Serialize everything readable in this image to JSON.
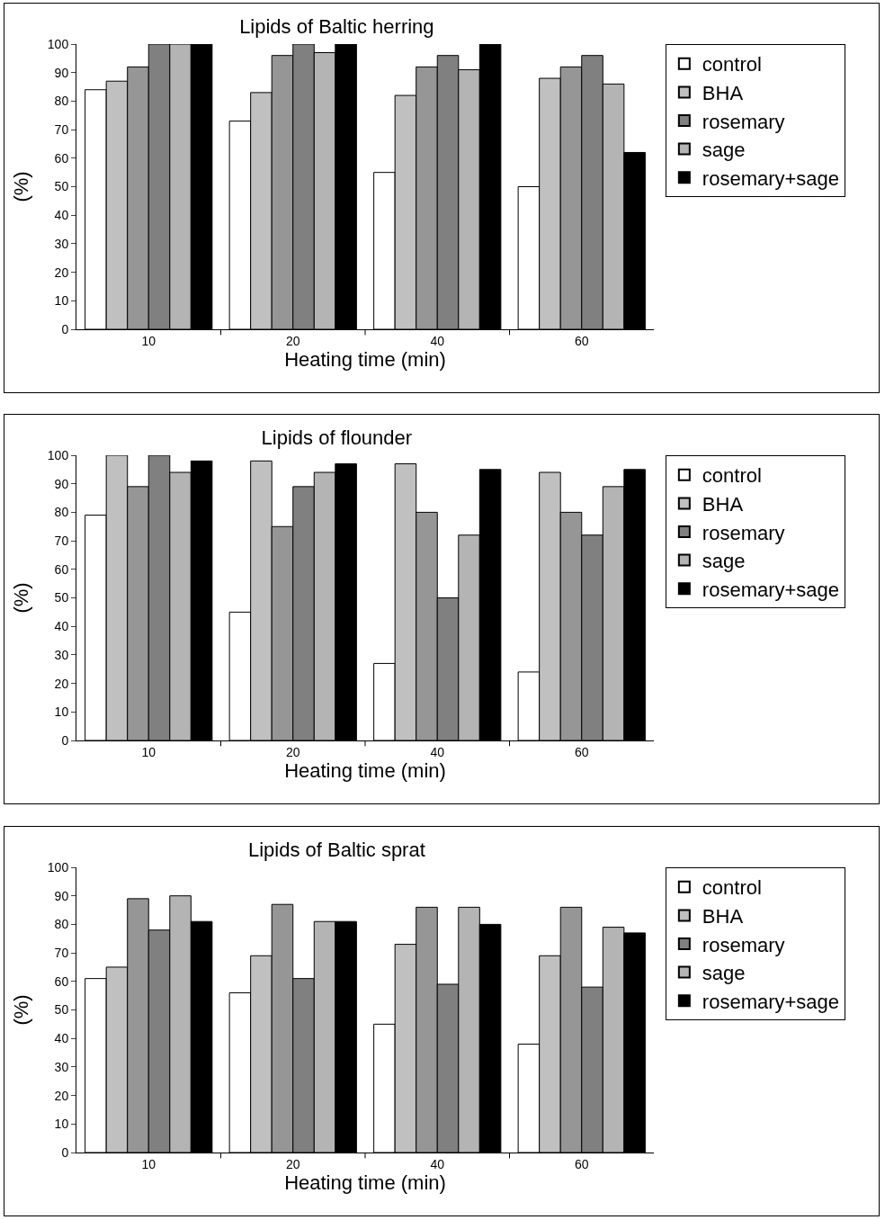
{
  "chart_data": [
    {
      "type": "bar",
      "title": "Lipids of Baltic herring",
      "xlabel": "Heating time (min)",
      "ylabel": "(%)",
      "categories": [
        "10",
        "20",
        "40",
        "60"
      ],
      "ylim": [
        0,
        100
      ],
      "yticks": [
        0,
        10,
        20,
        30,
        40,
        50,
        60,
        70,
        80,
        90,
        100
      ],
      "grid": false,
      "legend": "right",
      "series": [
        {
          "name": "control",
          "color": "#ffffff",
          "values": [
            84,
            73,
            55,
            50
          ]
        },
        {
          "name": "BHA",
          "color": "#c0c0c0",
          "values": [
            87,
            83,
            82,
            88
          ]
        },
        {
          "color": "#969696",
          "values": [
            92,
            96,
            92,
            92
          ]
        },
        {
          "name": "rosemary",
          "color": "#808080",
          "values": [
            100,
            100,
            96,
            96
          ]
        },
        {
          "name": "sage",
          "color": "#b4b4b4",
          "values": [
            100,
            97,
            91,
            86
          ]
        },
        {
          "name": "rosemary+sage",
          "color": "#000000",
          "values": [
            100,
            100,
            100,
            62
          ]
        }
      ]
    },
    {
      "type": "bar",
      "title": "Lipids of flounder",
      "xlabel": "Heating time (min)",
      "ylabel": "(%)",
      "categories": [
        "10",
        "20",
        "40",
        "60"
      ],
      "ylim": [
        0,
        100
      ],
      "yticks": [
        0,
        10,
        20,
        30,
        40,
        50,
        60,
        70,
        80,
        90,
        100
      ],
      "grid": false,
      "legend": "right",
      "series": [
        {
          "name": "control",
          "color": "#ffffff",
          "values": [
            79,
            45,
            27,
            24
          ]
        },
        {
          "name": "BHA",
          "color": "#c0c0c0",
          "values": [
            100,
            98,
            97,
            94
          ]
        },
        {
          "color": "#969696",
          "values": [
            89,
            75,
            80,
            80
          ]
        },
        {
          "name": "rosemary",
          "color": "#808080",
          "values": [
            100,
            89,
            50,
            72
          ]
        },
        {
          "name": "sage",
          "color": "#b4b4b4",
          "values": [
            94,
            94,
            72,
            89
          ]
        },
        {
          "name": "rosemary+sage",
          "color": "#000000",
          "values": [
            98,
            97,
            95,
            95
          ]
        }
      ]
    },
    {
      "type": "bar",
      "title": "Lipids of Baltic sprat",
      "xlabel": "Heating time (min)",
      "ylabel": "(%)",
      "categories": [
        "10",
        "20",
        "40",
        "60"
      ],
      "ylim": [
        0,
        100
      ],
      "yticks": [
        0,
        10,
        20,
        30,
        40,
        50,
        60,
        70,
        80,
        90,
        100
      ],
      "grid": false,
      "legend": "right",
      "series": [
        {
          "name": "control",
          "color": "#ffffff",
          "values": [
            61,
            56,
            45,
            38
          ]
        },
        {
          "name": "BHA",
          "color": "#c0c0c0",
          "values": [
            65,
            69,
            73,
            69
          ]
        },
        {
          "color": "#969696",
          "values": [
            89,
            87,
            86,
            86
          ]
        },
        {
          "name": "rosemary",
          "color": "#808080",
          "values": [
            78,
            61,
            59,
            58
          ]
        },
        {
          "name": "sage",
          "color": "#b4b4b4",
          "values": [
            90,
            81,
            86,
            79
          ]
        },
        {
          "name": "rosemary+sage",
          "color": "#000000",
          "values": [
            81,
            81,
            80,
            77
          ]
        }
      ]
    }
  ]
}
